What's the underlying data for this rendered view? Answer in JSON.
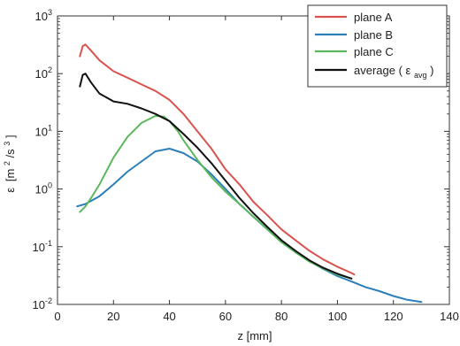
{
  "chart_data": {
    "type": "line",
    "title": "",
    "xlabel": "z [mm]",
    "ylabel_parts": {
      "symbol": "ε",
      "unit_open": "[m",
      "exp1": "2",
      "mid": "/s",
      "exp2": "3",
      "unit_close": "]"
    },
    "xlim": [
      0,
      140
    ],
    "ylim": [
      0.01,
      1000
    ],
    "yscale": "log",
    "grid": false,
    "legend_position": "top-right",
    "x_ticks": [
      "0",
      "20",
      "40",
      "60",
      "80",
      "100",
      "120",
      "140"
    ],
    "x_tick_values": [
      0,
      20,
      40,
      60,
      80,
      100,
      120,
      140
    ],
    "y_ticks": [
      {
        "base": "10",
        "exp": "-2",
        "value": 0.01
      },
      {
        "base": "10",
        "exp": "-1",
        "value": 0.1
      },
      {
        "base": "10",
        "exp": "0",
        "value": 1
      },
      {
        "base": "10",
        "exp": "1",
        "value": 10
      },
      {
        "base": "10",
        "exp": "2",
        "value": 100
      },
      {
        "base": "10",
        "exp": "3",
        "value": 1000
      }
    ],
    "series": [
      {
        "name": "plane A",
        "color": "#d9534f",
        "x": [
          8,
          9,
          10,
          12,
          15,
          20,
          25,
          30,
          35,
          40,
          45,
          50,
          55,
          60,
          65,
          70,
          75,
          80,
          85,
          90,
          95,
          100,
          105,
          106
        ],
        "y": [
          200,
          300,
          320,
          250,
          170,
          110,
          85,
          65,
          50,
          35,
          20,
          10,
          5,
          2.2,
          1.2,
          0.6,
          0.35,
          0.2,
          0.13,
          0.085,
          0.06,
          0.045,
          0.035,
          0.033
        ]
      },
      {
        "name": "plane B",
        "color": "#2c7fb8",
        "x": [
          7,
          10,
          15,
          20,
          25,
          30,
          35,
          40,
          45,
          50,
          55,
          60,
          65,
          70,
          75,
          80,
          85,
          90,
          95,
          100,
          105,
          110,
          115,
          120,
          125,
          130
        ],
        "y": [
          0.5,
          0.55,
          0.75,
          1.2,
          2,
          3,
          4.5,
          5,
          4.2,
          3,
          1.8,
          1,
          0.55,
          0.33,
          0.2,
          0.12,
          0.08,
          0.056,
          0.041,
          0.031,
          0.025,
          0.02,
          0.017,
          0.014,
          0.012,
          0.011
        ]
      },
      {
        "name": "plane C",
        "color": "#5cb85c",
        "x": [
          8,
          10,
          12,
          15,
          20,
          25,
          30,
          35,
          38,
          40,
          43,
          45,
          50,
          55,
          60,
          65,
          70,
          75,
          80,
          85,
          90,
          95,
          100,
          105
        ],
        "y": [
          0.4,
          0.5,
          0.7,
          1.2,
          3.5,
          8,
          14,
          18.5,
          18,
          15,
          10,
          7,
          3.2,
          1.6,
          0.9,
          0.55,
          0.33,
          0.2,
          0.12,
          0.08,
          0.055,
          0.042,
          0.033,
          0.028
        ]
      },
      {
        "name_parts": {
          "label": "average (",
          "symbol": "ε",
          "sub": "avg",
          "close": ")"
        },
        "color": "#111111",
        "x": [
          8,
          9,
          10,
          12,
          15,
          20,
          25,
          30,
          35,
          40,
          45,
          50,
          55,
          60,
          65,
          70,
          75,
          80,
          85,
          90,
          95,
          100,
          105
        ],
        "y": [
          60,
          95,
          100,
          70,
          45,
          33,
          30,
          25,
          20,
          15,
          9,
          5.2,
          2.8,
          1.4,
          0.7,
          0.38,
          0.22,
          0.13,
          0.085,
          0.058,
          0.043,
          0.034,
          0.028
        ]
      }
    ]
  }
}
